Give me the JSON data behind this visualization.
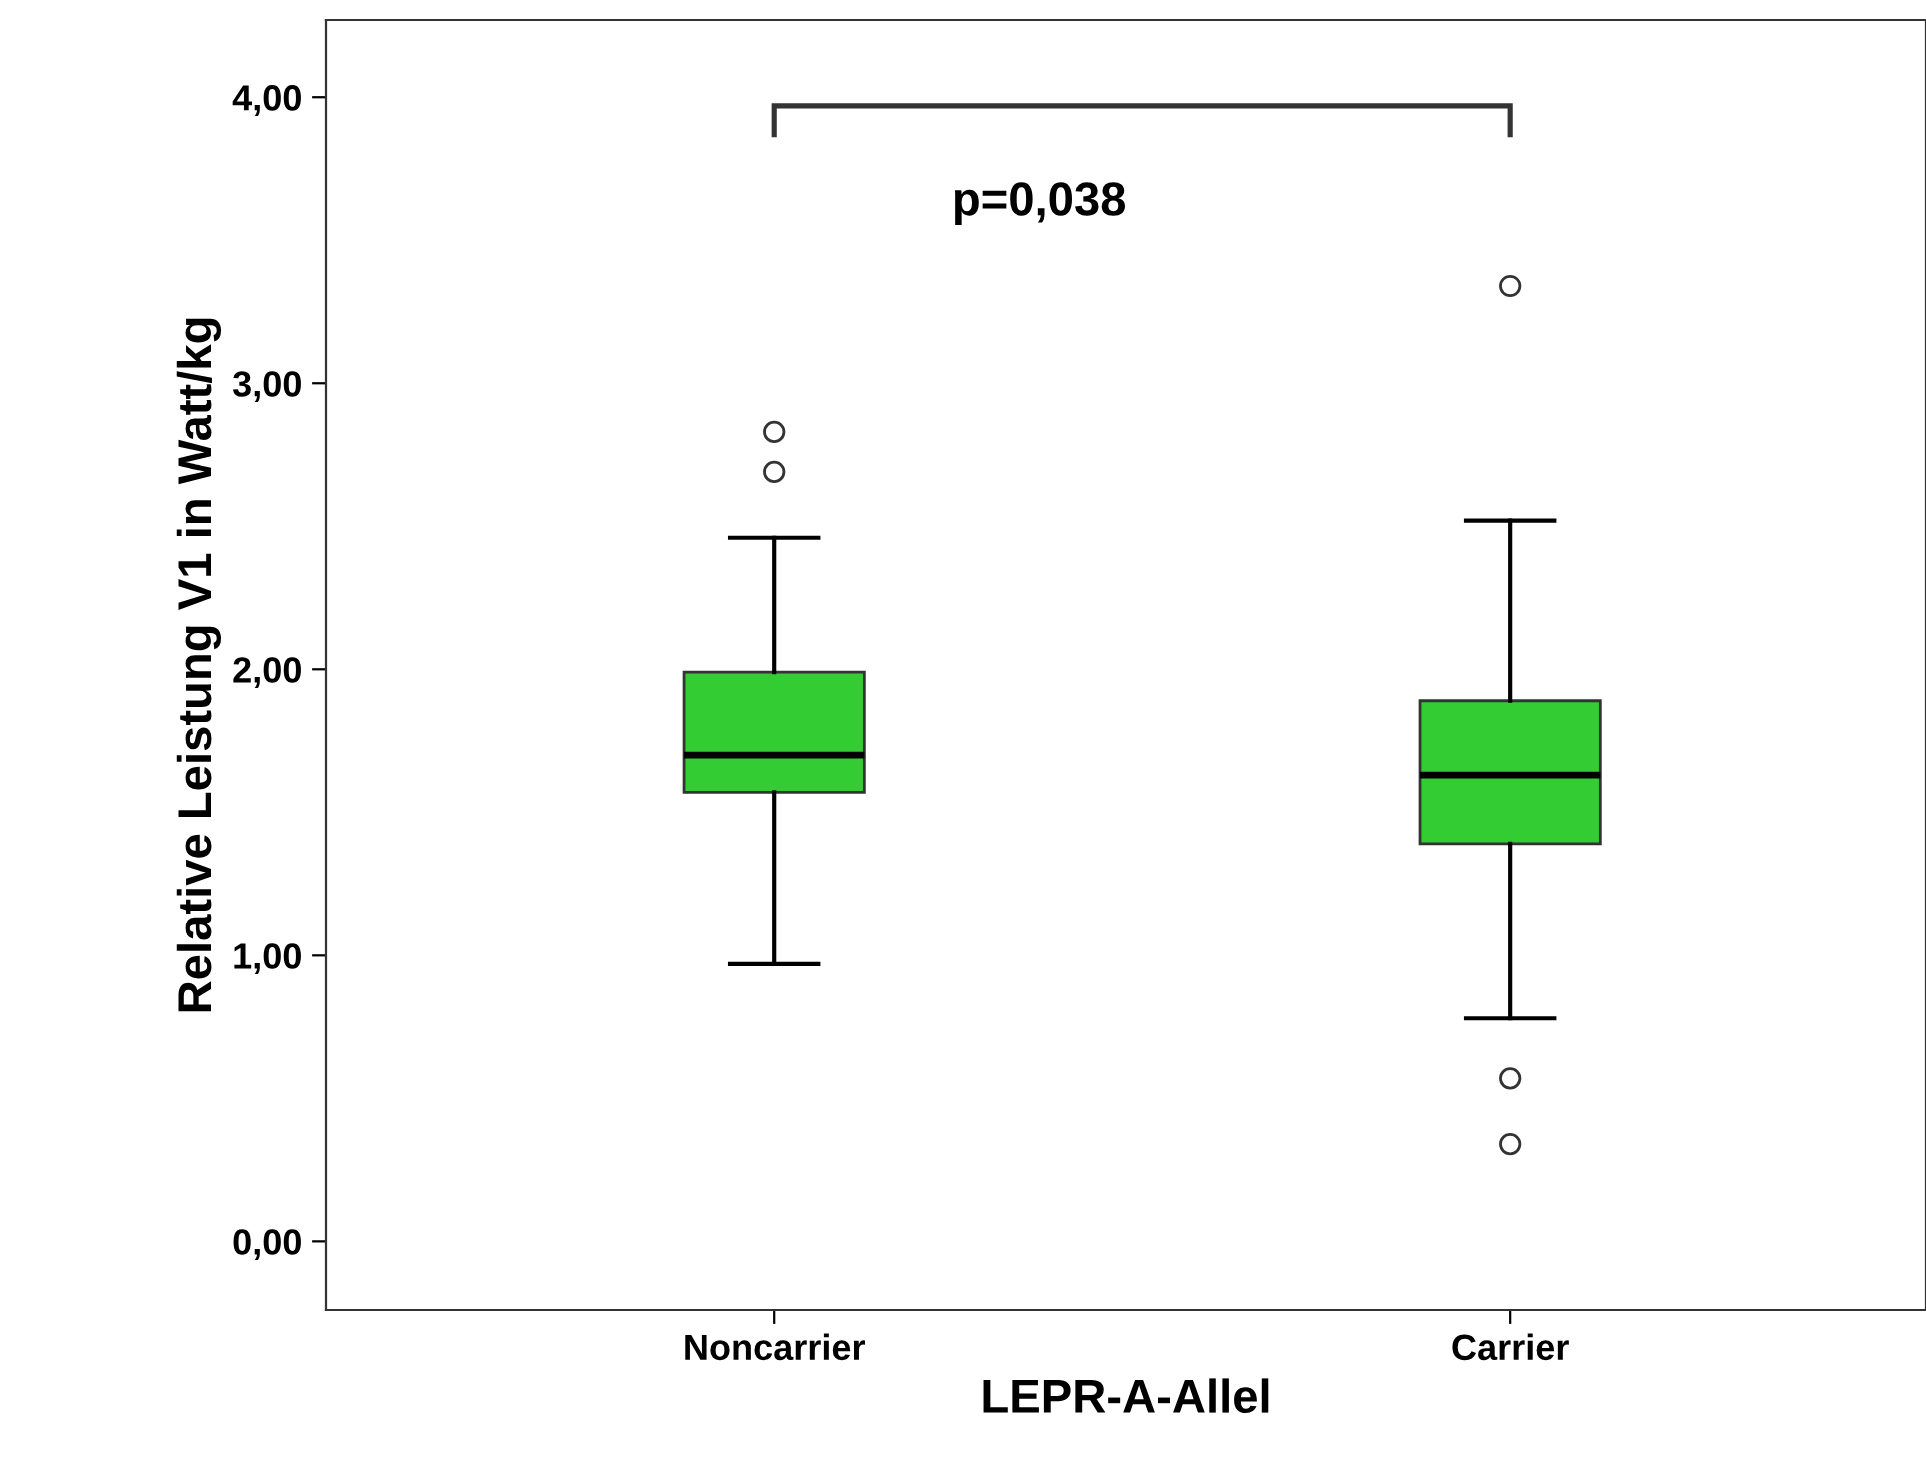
{
  "chart_data": {
    "type": "box",
    "xlabel": "LEPR-A-Allel",
    "ylabel": "Relative Leistung V1 in Watt/kg",
    "categories": [
      "Noncarrier",
      "Carrier"
    ],
    "color": "#33cc33",
    "boxes": [
      {
        "low": 0.97,
        "q1": 1.57,
        "median": 1.7,
        "q3": 1.99,
        "high": 2.46,
        "outliers": [
          2.69,
          2.83
        ]
      },
      {
        "low": 0.78,
        "q1": 1.39,
        "median": 1.63,
        "q3": 1.89,
        "high": 2.52,
        "outliers": [
          0.34,
          0.57,
          3.34
        ]
      }
    ],
    "ylim": [
      -0.24,
      4.27
    ],
    "yticks": [
      {
        "value": 0,
        "label": "0,00"
      },
      {
        "value": 1,
        "label": "1,00"
      },
      {
        "value": 2,
        "label": "2,00"
      },
      {
        "value": 3,
        "label": "3,00"
      },
      {
        "value": 4,
        "label": "4,00"
      }
    ],
    "grid": false,
    "annotations": [
      "p=0,038"
    ]
  }
}
